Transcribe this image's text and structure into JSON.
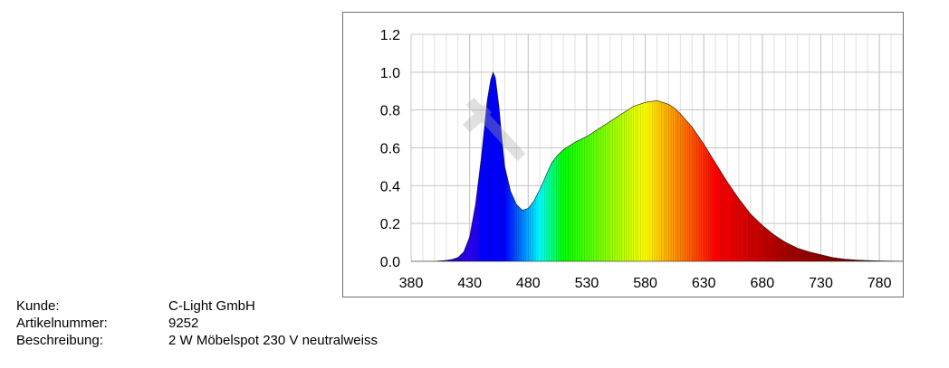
{
  "chart_data": {
    "type": "area",
    "title": "",
    "xlabel": "",
    "ylabel": "",
    "xlim": [
      380,
      800
    ],
    "ylim": [
      0,
      1.2
    ],
    "x_ticks": [
      "380",
      "430",
      "480",
      "530",
      "580",
      "630",
      "680",
      "730",
      "780"
    ],
    "y_ticks": [
      "0.0",
      "0.2",
      "0.4",
      "0.6",
      "0.8",
      "1.0",
      "1.2"
    ],
    "grid": true,
    "fill": "spectral-color-gradient",
    "series": [
      {
        "x": [
          380,
          400,
          410,
          415,
          420,
          425,
          430,
          435,
          440,
          445,
          448,
          450,
          452,
          455,
          458,
          460,
          465,
          470,
          475,
          480,
          485,
          490,
          495,
          500,
          505,
          510,
          515,
          520,
          530,
          540,
          550,
          560,
          570,
          580,
          590,
          595,
          600,
          605,
          610,
          620,
          630,
          640,
          650,
          660,
          670,
          680,
          690,
          700,
          710,
          720,
          730,
          740,
          750,
          760,
          770,
          780,
          790,
          800
        ],
        "y": [
          0.0,
          0.0,
          0.005,
          0.01,
          0.02,
          0.05,
          0.13,
          0.3,
          0.55,
          0.85,
          0.96,
          1.0,
          0.97,
          0.82,
          0.62,
          0.5,
          0.37,
          0.3,
          0.27,
          0.28,
          0.32,
          0.38,
          0.45,
          0.52,
          0.56,
          0.59,
          0.61,
          0.63,
          0.66,
          0.7,
          0.74,
          0.78,
          0.82,
          0.84,
          0.85,
          0.84,
          0.83,
          0.81,
          0.78,
          0.71,
          0.62,
          0.52,
          0.42,
          0.33,
          0.25,
          0.19,
          0.14,
          0.1,
          0.07,
          0.05,
          0.035,
          0.02,
          0.012,
          0.007,
          0.004,
          0.002,
          0.001,
          0.0
        ]
      }
    ]
  },
  "info": [
    {
      "label": "Kunde:",
      "value": "C-Light GmbH"
    },
    {
      "label": "Artikelnummer:",
      "value": "9252"
    },
    {
      "label": "Beschreibung:",
      "value": "2 W Möbelspot 230 V neutralweiss"
    }
  ]
}
